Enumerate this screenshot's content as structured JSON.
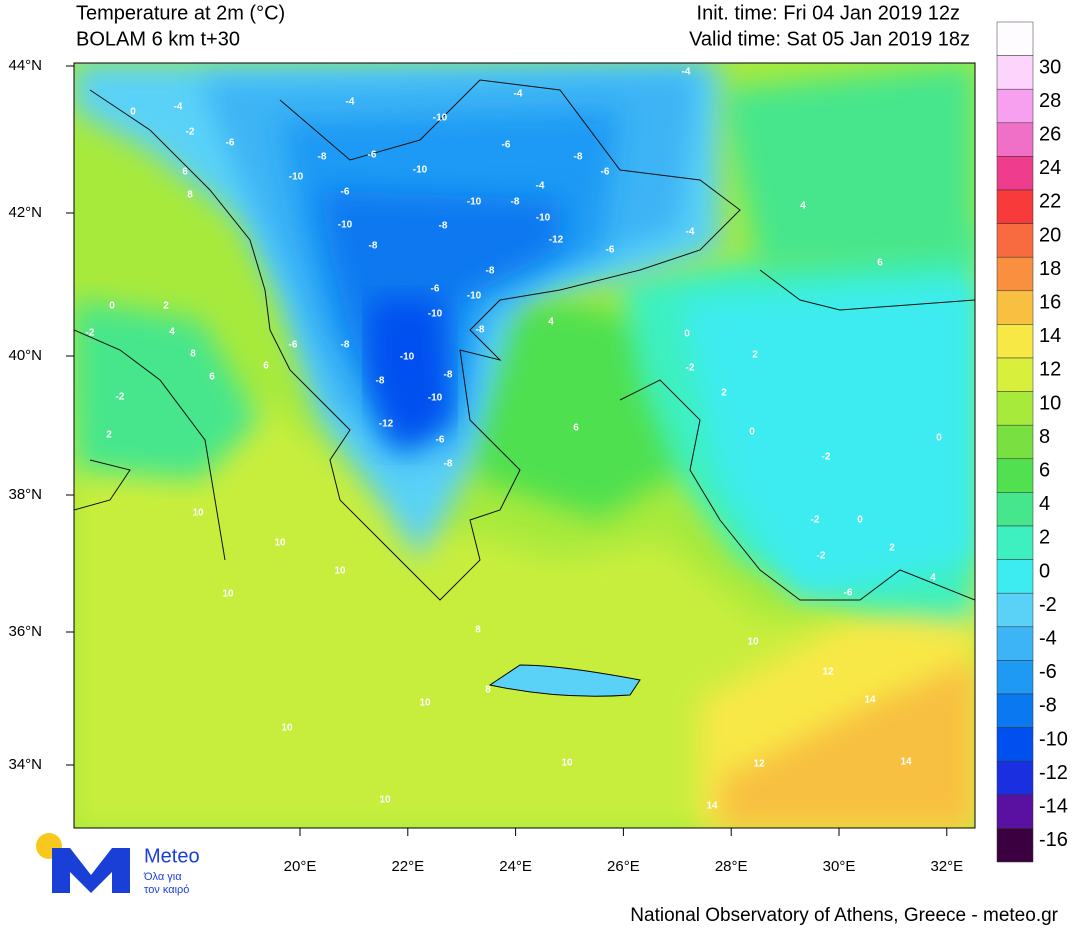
{
  "header": {
    "title": "Temperature at 2m (°C)",
    "model": "BOLAM 6 km t+30",
    "init_time": "Init. time: Fri 04 Jan 2019 12z",
    "valid_time": "Valid time: Sat 05 Jan 2019 18z"
  },
  "map": {
    "lat_labels": [
      "44°N",
      "42°N",
      "40°N",
      "38°N",
      "36°N",
      "34°N"
    ],
    "lon_labels": [
      "20°E",
      "22°E",
      "24°E",
      "26°E",
      "28°E",
      "30°E",
      "32°E"
    ],
    "contour_labels": [
      -4,
      -2,
      0,
      6,
      8,
      -6,
      -8,
      -6,
      -10,
      -4,
      -10,
      -10,
      -6,
      -8,
      -6,
      -4,
      -4,
      -4,
      -6,
      -10,
      -8,
      -8,
      -10,
      -8,
      -10,
      -12,
      -6,
      -4,
      4,
      6,
      -8,
      -6,
      -10,
      -10,
      -8,
      -8,
      -6,
      -10,
      -8,
      -8,
      -10,
      -12,
      -6,
      -8,
      2,
      0,
      -2,
      2,
      0,
      -2,
      0,
      4,
      6,
      10,
      10,
      10,
      10,
      8,
      8,
      10,
      10,
      10,
      10,
      12,
      14,
      14,
      14,
      12,
      10,
      -2,
      -2,
      -6,
      0,
      2,
      4,
      2,
      -2,
      0,
      -2,
      4,
      2,
      6,
      8,
      6
    ]
  },
  "colorbar": {
    "labels": [
      30,
      28,
      26,
      24,
      22,
      20,
      18,
      16,
      14,
      12,
      10,
      8,
      6,
      4,
      2,
      0,
      -2,
      -4,
      -6,
      -8,
      -10,
      -12,
      -14,
      -16
    ],
    "colors": [
      "#fffcff",
      "#fcd4fc",
      "#f8a0f0",
      "#f070c8",
      "#f03c8c",
      "#f83a3a",
      "#f86a40",
      "#f89040",
      "#f8c040",
      "#f8e846",
      "#d8f03c",
      "#a8ea3c",
      "#78e040",
      "#50e050",
      "#46e68c",
      "#3ef0c0",
      "#3cecf0",
      "#5ad2f8",
      "#3cb4f5",
      "#1e9af5",
      "#0a78f0",
      "#0050f0",
      "#1a30e0",
      "#5a10a0",
      "#3a0040"
    ]
  },
  "logo": {
    "name": "Meteo",
    "line1": "Όλα για",
    "line2": "τον καιρό"
  },
  "footer": "National Observatory of Athens, Greece - meteo.gr"
}
